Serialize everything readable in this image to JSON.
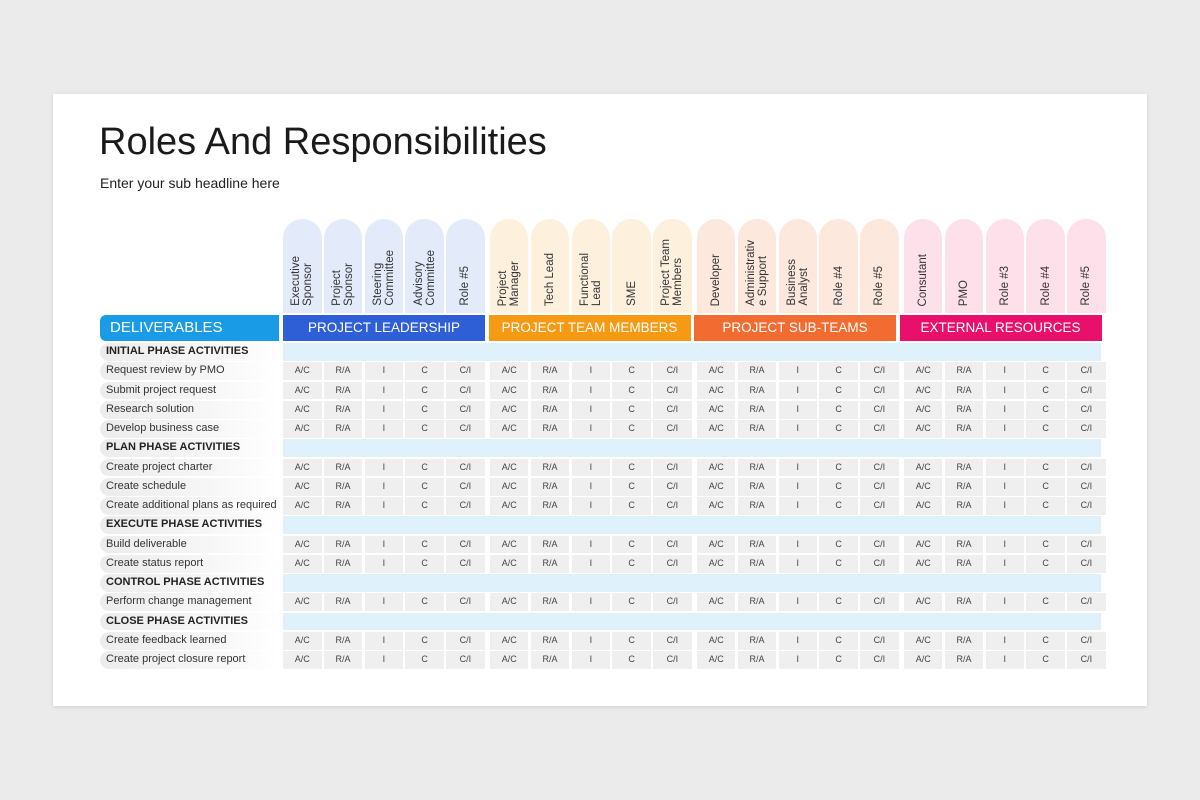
{
  "title": "Roles And Responsibilities",
  "subtitle": "Enter your sub headline here",
  "deliverables_label": "DELIVERABLES",
  "groups": [
    {
      "name": "PROJECT LEADERSHIP",
      "color": "#2f5fd6",
      "tint": "#e3ebfa",
      "roles": [
        "Executive\nSponsor",
        "Project\nSponsor",
        "Steering\nCommittee",
        "Advisory\nCommittee",
        "Role #5"
      ]
    },
    {
      "name": "PROJECT TEAM MEMBERS",
      "color": "#f59a12",
      "tint": "#fdf1de",
      "roles": [
        "Project\nManager",
        "Tech Lead",
        "Functional\nLead",
        "SME",
        "Project Team\nMembers"
      ]
    },
    {
      "name": "PROJECT SUB-TEAMS",
      "color": "#f26b30",
      "tint": "#fde8de",
      "roles": [
        "Developer",
        "Administrativ\ne Support",
        "Business\nAnalyst",
        "Role #4",
        "Role #5"
      ]
    },
    {
      "name": "EXTERNAL RESOURCES",
      "color": "#e8106b",
      "tint": "#fde0ea",
      "roles": [
        "Consutant",
        "PMO",
        "Role #3",
        "Role #4",
        "Role #5"
      ]
    }
  ],
  "sections": [
    {
      "phase": "INITIAL PHASE ACTIVITIES",
      "items": [
        {
          "label": "Request review by PMO",
          "values": [
            "A/C",
            "R/A",
            "I",
            "C",
            "C/I",
            "A/C",
            "R/A",
            "I",
            "C",
            "C/I",
            "A/C",
            "R/A",
            "I",
            "C",
            "C/I",
            "A/C",
            "R/A",
            "I",
            "C",
            "C/I"
          ]
        },
        {
          "label": "Submit project request",
          "values": [
            "A/C",
            "R/A",
            "I",
            "C",
            "C/I",
            "A/C",
            "R/A",
            "I",
            "C",
            "C/I",
            "A/C",
            "R/A",
            "I",
            "C",
            "C/I",
            "A/C",
            "R/A",
            "I",
            "C",
            "C/I"
          ]
        },
        {
          "label": "Research solution",
          "values": [
            "A/C",
            "R/A",
            "I",
            "C",
            "C/I",
            "A/C",
            "R/A",
            "I",
            "C",
            "C/I",
            "A/C",
            "R/A",
            "I",
            "C",
            "C/I",
            "A/C",
            "R/A",
            "I",
            "C",
            "C/I"
          ]
        },
        {
          "label": "Develop business case",
          "values": [
            "A/C",
            "R/A",
            "I",
            "C",
            "C/I",
            "A/C",
            "R/A",
            "I",
            "C",
            "C/I",
            "A/C",
            "R/A",
            "I",
            "C",
            "C/I",
            "A/C",
            "R/A",
            "I",
            "C",
            "C/I"
          ]
        }
      ]
    },
    {
      "phase": "PLAN PHASE ACTIVITIES",
      "items": [
        {
          "label": "Create project charter",
          "values": [
            "A/C",
            "R/A",
            "I",
            "C",
            "C/I",
            "A/C",
            "R/A",
            "I",
            "C",
            "C/I",
            "A/C",
            "R/A",
            "I",
            "C",
            "C/I",
            "A/C",
            "R/A",
            "I",
            "C",
            "C/I"
          ]
        },
        {
          "label": "Create schedule",
          "values": [
            "A/C",
            "R/A",
            "I",
            "C",
            "C/I",
            "A/C",
            "R/A",
            "I",
            "C",
            "C/I",
            "A/C",
            "R/A",
            "I",
            "C",
            "C/I",
            "A/C",
            "R/A",
            "I",
            "C",
            "C/I"
          ]
        },
        {
          "label": "Create additional plans as required",
          "values": [
            "A/C",
            "R/A",
            "I",
            "C",
            "C/I",
            "A/C",
            "R/A",
            "I",
            "C",
            "C/I",
            "A/C",
            "R/A",
            "I",
            "C",
            "C/I",
            "A/C",
            "R/A",
            "I",
            "C",
            "C/I"
          ]
        }
      ]
    },
    {
      "phase": "EXECUTE PHASE ACTIVITIES",
      "items": [
        {
          "label": "Build deliverable",
          "values": [
            "A/C",
            "R/A",
            "I",
            "C",
            "C/I",
            "A/C",
            "R/A",
            "I",
            "C",
            "C/I",
            "A/C",
            "R/A",
            "I",
            "C",
            "C/I",
            "A/C",
            "R/A",
            "I",
            "C",
            "C/I"
          ]
        },
        {
          "label": "Create status report",
          "values": [
            "A/C",
            "R/A",
            "I",
            "C",
            "C/I",
            "A/C",
            "R/A",
            "I",
            "C",
            "C/I",
            "A/C",
            "R/A",
            "I",
            "C",
            "C/I",
            "A/C",
            "R/A",
            "I",
            "C",
            "C/I"
          ]
        }
      ]
    },
    {
      "phase": "CONTROL PHASE ACTIVITIES",
      "items": [
        {
          "label": "Perform change management",
          "values": [
            "A/C",
            "R/A",
            "I",
            "C",
            "C/I",
            "A/C",
            "R/A",
            "I",
            "C",
            "C/I",
            "A/C",
            "R/A",
            "I",
            "C",
            "C/I",
            "A/C",
            "R/A",
            "I",
            "C",
            "C/I"
          ]
        }
      ]
    },
    {
      "phase": "CLOSE PHASE ACTIVITIES",
      "items": [
        {
          "label": "Create feedback learned",
          "values": [
            "A/C",
            "R/A",
            "I",
            "C",
            "C/I",
            "A/C",
            "R/A",
            "I",
            "C",
            "C/I",
            "A/C",
            "R/A",
            "I",
            "C",
            "C/I",
            "A/C",
            "R/A",
            "I",
            "C",
            "C/I"
          ]
        },
        {
          "label": "Create project closure report",
          "values": [
            "A/C",
            "R/A",
            "I",
            "C",
            "C/I",
            "A/C",
            "R/A",
            "I",
            "C",
            "C/I",
            "A/C",
            "R/A",
            "I",
            "C",
            "C/I",
            "A/C",
            "R/A",
            "I",
            "C",
            "C/I"
          ]
        }
      ]
    }
  ]
}
